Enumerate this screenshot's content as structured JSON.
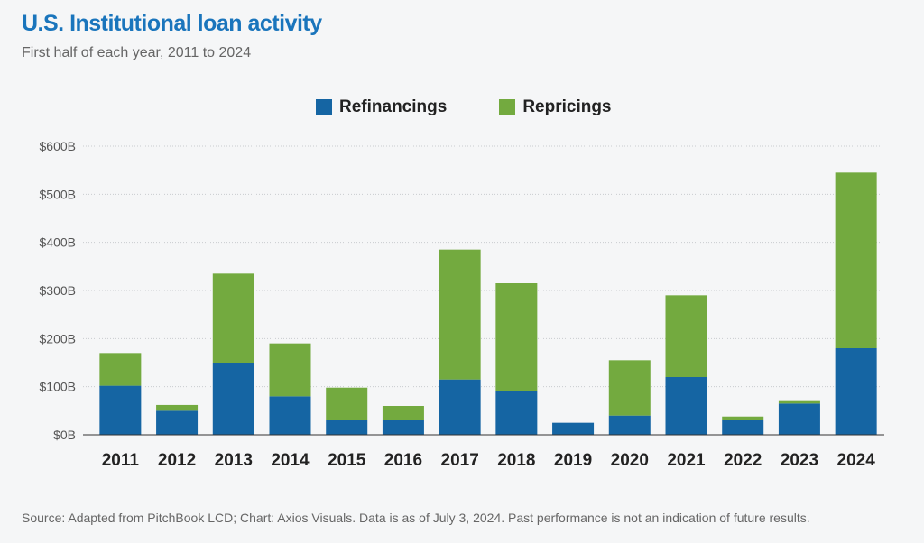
{
  "header": {
    "title": "U.S. Institutional loan activity",
    "subtitle": "First half of each year, 2011 to 2024"
  },
  "legend": {
    "items": [
      {
        "label": "Refinancings",
        "color": "#1565a3"
      },
      {
        "label": "Repricings",
        "color": "#73aa3f"
      }
    ]
  },
  "footer": {
    "source": "Source: Adapted from PitchBook LCD; Chart: Axios Visuals. Data is as of July 3, 2024. Past performance is not an indication of future results."
  },
  "chart_data": {
    "type": "bar",
    "stacked": true,
    "title": "U.S. Institutional loan activity",
    "subtitle": "First half of each year, 2011 to 2024",
    "categories": [
      "2011",
      "2012",
      "2013",
      "2014",
      "2015",
      "2016",
      "2017",
      "2018",
      "2019",
      "2020",
      "2021",
      "2022",
      "2023",
      "2024"
    ],
    "series": [
      {
        "name": "Refinancings",
        "color": "#1565a3",
        "values": [
          102,
          50,
          150,
          80,
          30,
          30,
          115,
          90,
          25,
          40,
          120,
          30,
          65,
          180
        ]
      },
      {
        "name": "Repricings",
        "color": "#73aa3f",
        "values": [
          68,
          12,
          185,
          110,
          68,
          30,
          270,
          225,
          0,
          115,
          170,
          8,
          5,
          365
        ]
      }
    ],
    "ylim": [
      0,
      600
    ],
    "yticks": [
      0,
      100,
      200,
      300,
      400,
      500,
      600
    ],
    "ytick_labels": [
      "$0B",
      "$100B",
      "$200B",
      "$300B",
      "$400B",
      "$500B",
      "$600B"
    ],
    "xlabel": "",
    "ylabel": "",
    "grid": true,
    "legend_position": "top-center"
  }
}
